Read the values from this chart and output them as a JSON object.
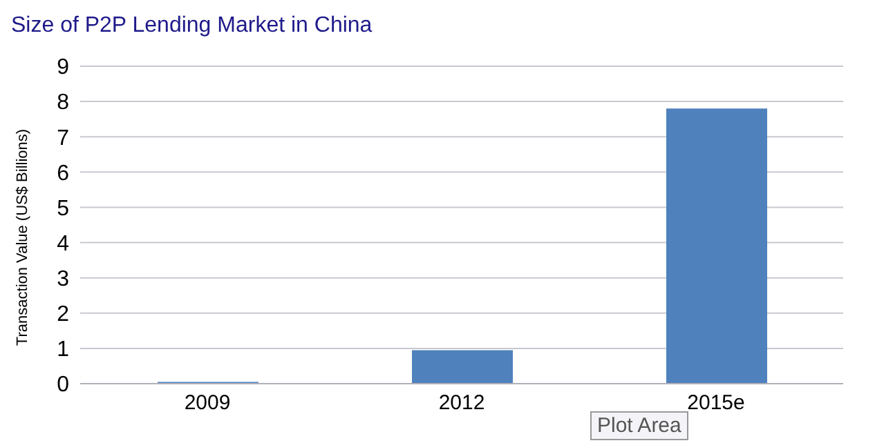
{
  "chart_data": {
    "type": "bar",
    "title": "Size of P2P Lending Market in China",
    "ylabel": "Transaction Value (US$ Billions)",
    "categories": [
      "2009",
      "2012",
      "2015e"
    ],
    "values": [
      0.05,
      0.95,
      7.8
    ],
    "color": "#4f81bd",
    "ylim": [
      0,
      9
    ],
    "yticks": [
      0,
      1,
      2,
      3,
      4,
      5,
      6,
      7,
      8,
      9
    ],
    "grid": "y",
    "annotations": [
      "Plot Area"
    ]
  }
}
